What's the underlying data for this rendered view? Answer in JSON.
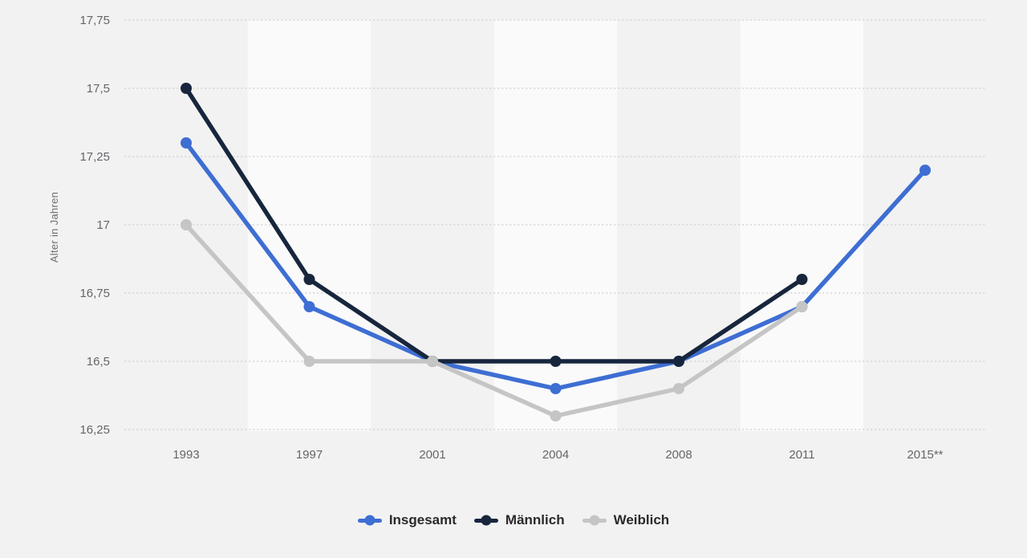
{
  "chart_data": {
    "type": "line",
    "title": "",
    "xlabel": "",
    "ylabel": "Alter in Jahren",
    "categories": [
      "1993",
      "1997",
      "2001",
      "2004",
      "2008",
      "2011",
      "2015**"
    ],
    "series": [
      {
        "name": "Insgesamt",
        "color": "#3e6ed3",
        "values": [
          17.3,
          16.7,
          16.5,
          16.4,
          16.5,
          16.7,
          17.2
        ]
      },
      {
        "name": "Männlich",
        "color": "#17263d",
        "values": [
          17.5,
          16.8,
          16.5,
          16.5,
          16.5,
          16.8,
          null
        ]
      },
      {
        "name": "Weiblich",
        "color": "#c5c5c5",
        "values": [
          17.0,
          16.5,
          16.5,
          16.3,
          16.4,
          16.7,
          null
        ]
      }
    ],
    "ylim": [
      16.25,
      17.75
    ],
    "ytick_step": 0.25,
    "ytick_labels": [
      "16,25",
      "16,5",
      "16,75",
      "17",
      "17,25",
      "17,5",
      "17,75"
    ],
    "grid": "horizontal-dotted",
    "legend_position": "bottom"
  },
  "style_colors": {
    "page_background": "#f2f2f2",
    "band_light": "#fafafa",
    "gridline": "#d4d4d4",
    "tick_text": "#66666b",
    "legend_text": "#2a2a2a"
  }
}
